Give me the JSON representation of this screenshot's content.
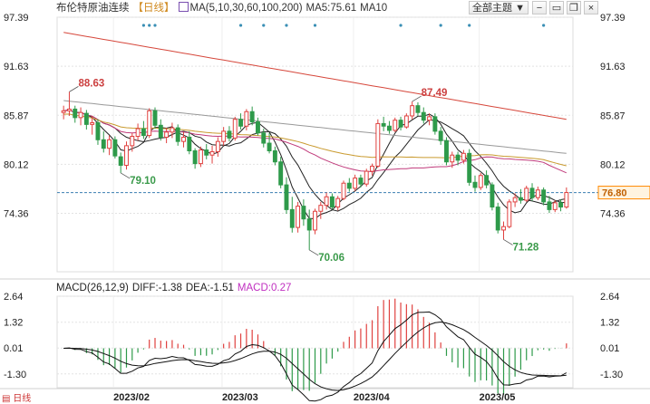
{
  "header": {
    "title": "布伦特原油连续",
    "period": "【日线】",
    "ma_label": "MA(5,10,30,60,100,200)",
    "ma5": "MA5:75.61",
    "ma10": "MA10",
    "menu_label": "全部主题 ▼"
  },
  "macd_header": {
    "label": "MACD(26,12,9)",
    "diff": "DIFF:-1.38",
    "dea": "DEA:-1.51",
    "macd": "MACD:0.27"
  },
  "footer": {
    "period_short": "日线"
  },
  "colors": {
    "up": "#e0413f",
    "down": "#2e9a4a",
    "ma5": "#222222",
    "ma10": "#222222",
    "ma30": "#d6473b",
    "ma60": "#999999",
    "ma100": "#c99a2e",
    "ma200": "#c03a7b",
    "current": "#ff8800",
    "grid": "#e3e3e3"
  },
  "chart_data": [
    {
      "type": "candlestick",
      "title": "布伦特原油连续",
      "y_ticks": [
        "97.39",
        "91.63",
        "85.87",
        "80.12",
        "74.36"
      ],
      "ylim": [
        67.5,
        97.39
      ],
      "x_ticks": [
        "2023/02",
        "2023/03",
        "2023/04",
        "2023/05"
      ],
      "current_price": "76.80",
      "annotations": [
        {
          "label": "88.63",
          "type": "high"
        },
        {
          "label": "79.10",
          "type": "low"
        },
        {
          "label": "70.06",
          "type": "low"
        },
        {
          "label": "87.49",
          "type": "high"
        },
        {
          "label": "71.28",
          "type": "low"
        }
      ],
      "candles": [
        [
          86.2,
          87.0,
          85.4,
          86.4
        ],
        [
          86.4,
          88.63,
          85.8,
          86.6
        ],
        [
          86.6,
          87.0,
          85.0,
          85.6
        ],
        [
          85.6,
          86.8,
          84.7,
          86.2
        ],
        [
          86.1,
          86.5,
          84.2,
          84.8
        ],
        [
          84.8,
          85.8,
          83.6,
          85.0
        ],
        [
          85.0,
          85.4,
          82.4,
          83.0
        ],
        [
          83.0,
          84.0,
          81.5,
          82.0
        ],
        [
          82.0,
          83.5,
          81.2,
          83.0
        ],
        [
          83.0,
          83.4,
          80.8,
          81.1
        ],
        [
          81.0,
          81.5,
          79.1,
          80.0
        ],
        [
          80.0,
          82.8,
          79.5,
          82.3
        ],
        [
          82.3,
          83.8,
          81.6,
          83.4
        ],
        [
          83.4,
          84.9,
          82.9,
          84.3
        ],
        [
          84.3,
          85.2,
          83.1,
          83.5
        ],
        [
          83.5,
          86.7,
          83.2,
          86.4
        ],
        [
          86.4,
          86.8,
          84.3,
          84.7
        ],
        [
          84.7,
          85.4,
          82.9,
          83.3
        ],
        [
          83.3,
          84.4,
          82.6,
          83.9
        ],
        [
          83.9,
          85.0,
          83.2,
          84.4
        ],
        [
          84.4,
          84.8,
          82.3,
          82.8
        ],
        [
          82.8,
          83.9,
          82.1,
          83.3
        ],
        [
          83.3,
          84.0,
          81.3,
          81.7
        ],
        [
          81.7,
          82.0,
          79.6,
          80.2
        ],
        [
          80.2,
          82.2,
          79.8,
          81.8
        ],
        [
          81.8,
          82.5,
          80.7,
          81.2
        ],
        [
          81.2,
          82.3,
          80.2,
          81.6
        ],
        [
          81.6,
          83.3,
          81.0,
          82.8
        ],
        [
          82.8,
          84.5,
          82.3,
          84.0
        ],
        [
          84.0,
          84.6,
          82.8,
          83.2
        ],
        [
          83.2,
          85.7,
          82.9,
          85.4
        ],
        [
          85.4,
          86.1,
          84.2,
          84.6
        ],
        [
          84.6,
          86.6,
          84.1,
          86.3
        ],
        [
          86.3,
          86.9,
          84.7,
          85.1
        ],
        [
          85.1,
          85.6,
          83.5,
          83.8
        ],
        [
          83.8,
          84.3,
          82.1,
          82.6
        ],
        [
          82.6,
          83.8,
          81.4,
          81.7
        ],
        [
          81.7,
          82.2,
          80.0,
          80.4
        ],
        [
          80.4,
          81.0,
          77.3,
          77.7
        ],
        [
          77.7,
          78.6,
          74.3,
          74.8
        ],
        [
          74.8,
          76.3,
          72.1,
          72.7
        ],
        [
          72.7,
          75.7,
          72.1,
          75.2
        ],
        [
          75.2,
          76.0,
          72.9,
          73.7
        ],
        [
          73.7,
          74.8,
          70.06,
          72.4
        ],
        [
          72.4,
          74.9,
          71.9,
          74.6
        ],
        [
          74.6,
          75.7,
          73.7,
          75.3
        ],
        [
          75.3,
          76.8,
          74.8,
          76.3
        ],
        [
          76.3,
          76.7,
          74.8,
          75.1
        ],
        [
          75.1,
          76.4,
          74.7,
          76.1
        ],
        [
          76.1,
          78.2,
          75.9,
          77.9
        ],
        [
          77.9,
          78.5,
          76.9,
          77.3
        ],
        [
          77.3,
          78.9,
          77.0,
          78.5
        ],
        [
          78.5,
          78.9,
          77.4,
          77.8
        ],
        [
          77.8,
          79.6,
          77.5,
          79.3
        ],
        [
          79.3,
          80.2,
          78.8,
          79.9
        ],
        [
          79.9,
          85.4,
          79.7,
          84.9
        ],
        [
          84.9,
          85.7,
          84.0,
          84.6
        ],
        [
          84.6,
          85.2,
          83.7,
          84.1
        ],
        [
          84.1,
          85.6,
          83.9,
          85.3
        ],
        [
          85.3,
          85.7,
          84.1,
          84.5
        ],
        [
          84.5,
          86.1,
          84.3,
          85.8
        ],
        [
          85.8,
          87.49,
          85.4,
          87.0
        ],
        [
          87.0,
          87.4,
          85.8,
          86.2
        ],
        [
          86.2,
          86.8,
          84.9,
          85.3
        ],
        [
          85.3,
          86.1,
          84.7,
          85.7
        ],
        [
          85.7,
          86.1,
          83.6,
          84.0
        ],
        [
          84.0,
          84.5,
          82.4,
          82.9
        ],
        [
          82.9,
          83.3,
          80.0,
          80.4
        ],
        [
          80.4,
          81.6,
          79.7,
          81.2
        ],
        [
          81.2,
          81.6,
          80.0,
          80.6
        ],
        [
          80.6,
          81.8,
          80.2,
          81.4
        ],
        [
          81.4,
          81.9,
          77.6,
          78.0
        ],
        [
          78.0,
          78.8,
          76.9,
          77.4
        ],
        [
          77.4,
          79.1,
          77.1,
          78.8
        ],
        [
          78.8,
          79.4,
          77.3,
          77.7
        ],
        [
          77.7,
          78.0,
          74.7,
          75.1
        ],
        [
          75.1,
          75.6,
          72.0,
          72.4
        ],
        [
          72.4,
          73.4,
          71.28,
          72.8
        ],
        [
          72.8,
          76.0,
          72.6,
          75.7
        ],
        [
          75.7,
          76.7,
          75.1,
          76.2
        ],
        [
          76.2,
          77.2,
          75.5,
          75.9
        ],
        [
          75.9,
          77.6,
          75.7,
          77.3
        ],
        [
          77.3,
          77.9,
          75.8,
          76.2
        ],
        [
          76.2,
          77.5,
          75.9,
          77.1
        ],
        [
          77.1,
          77.4,
          75.3,
          75.7
        ],
        [
          75.7,
          76.4,
          74.4,
          74.8
        ],
        [
          74.8,
          75.9,
          74.5,
          75.6
        ],
        [
          75.6,
          76.0,
          74.6,
          75.1
        ],
        [
          75.1,
          77.4,
          74.9,
          76.8
        ]
      ]
    },
    {
      "type": "macd",
      "title": "MACD(26,12,9)",
      "y_ticks": [
        "2.64",
        "1.32",
        "0.01",
        "-1.30"
      ],
      "ylim": [
        -2.0,
        2.64
      ]
    }
  ]
}
